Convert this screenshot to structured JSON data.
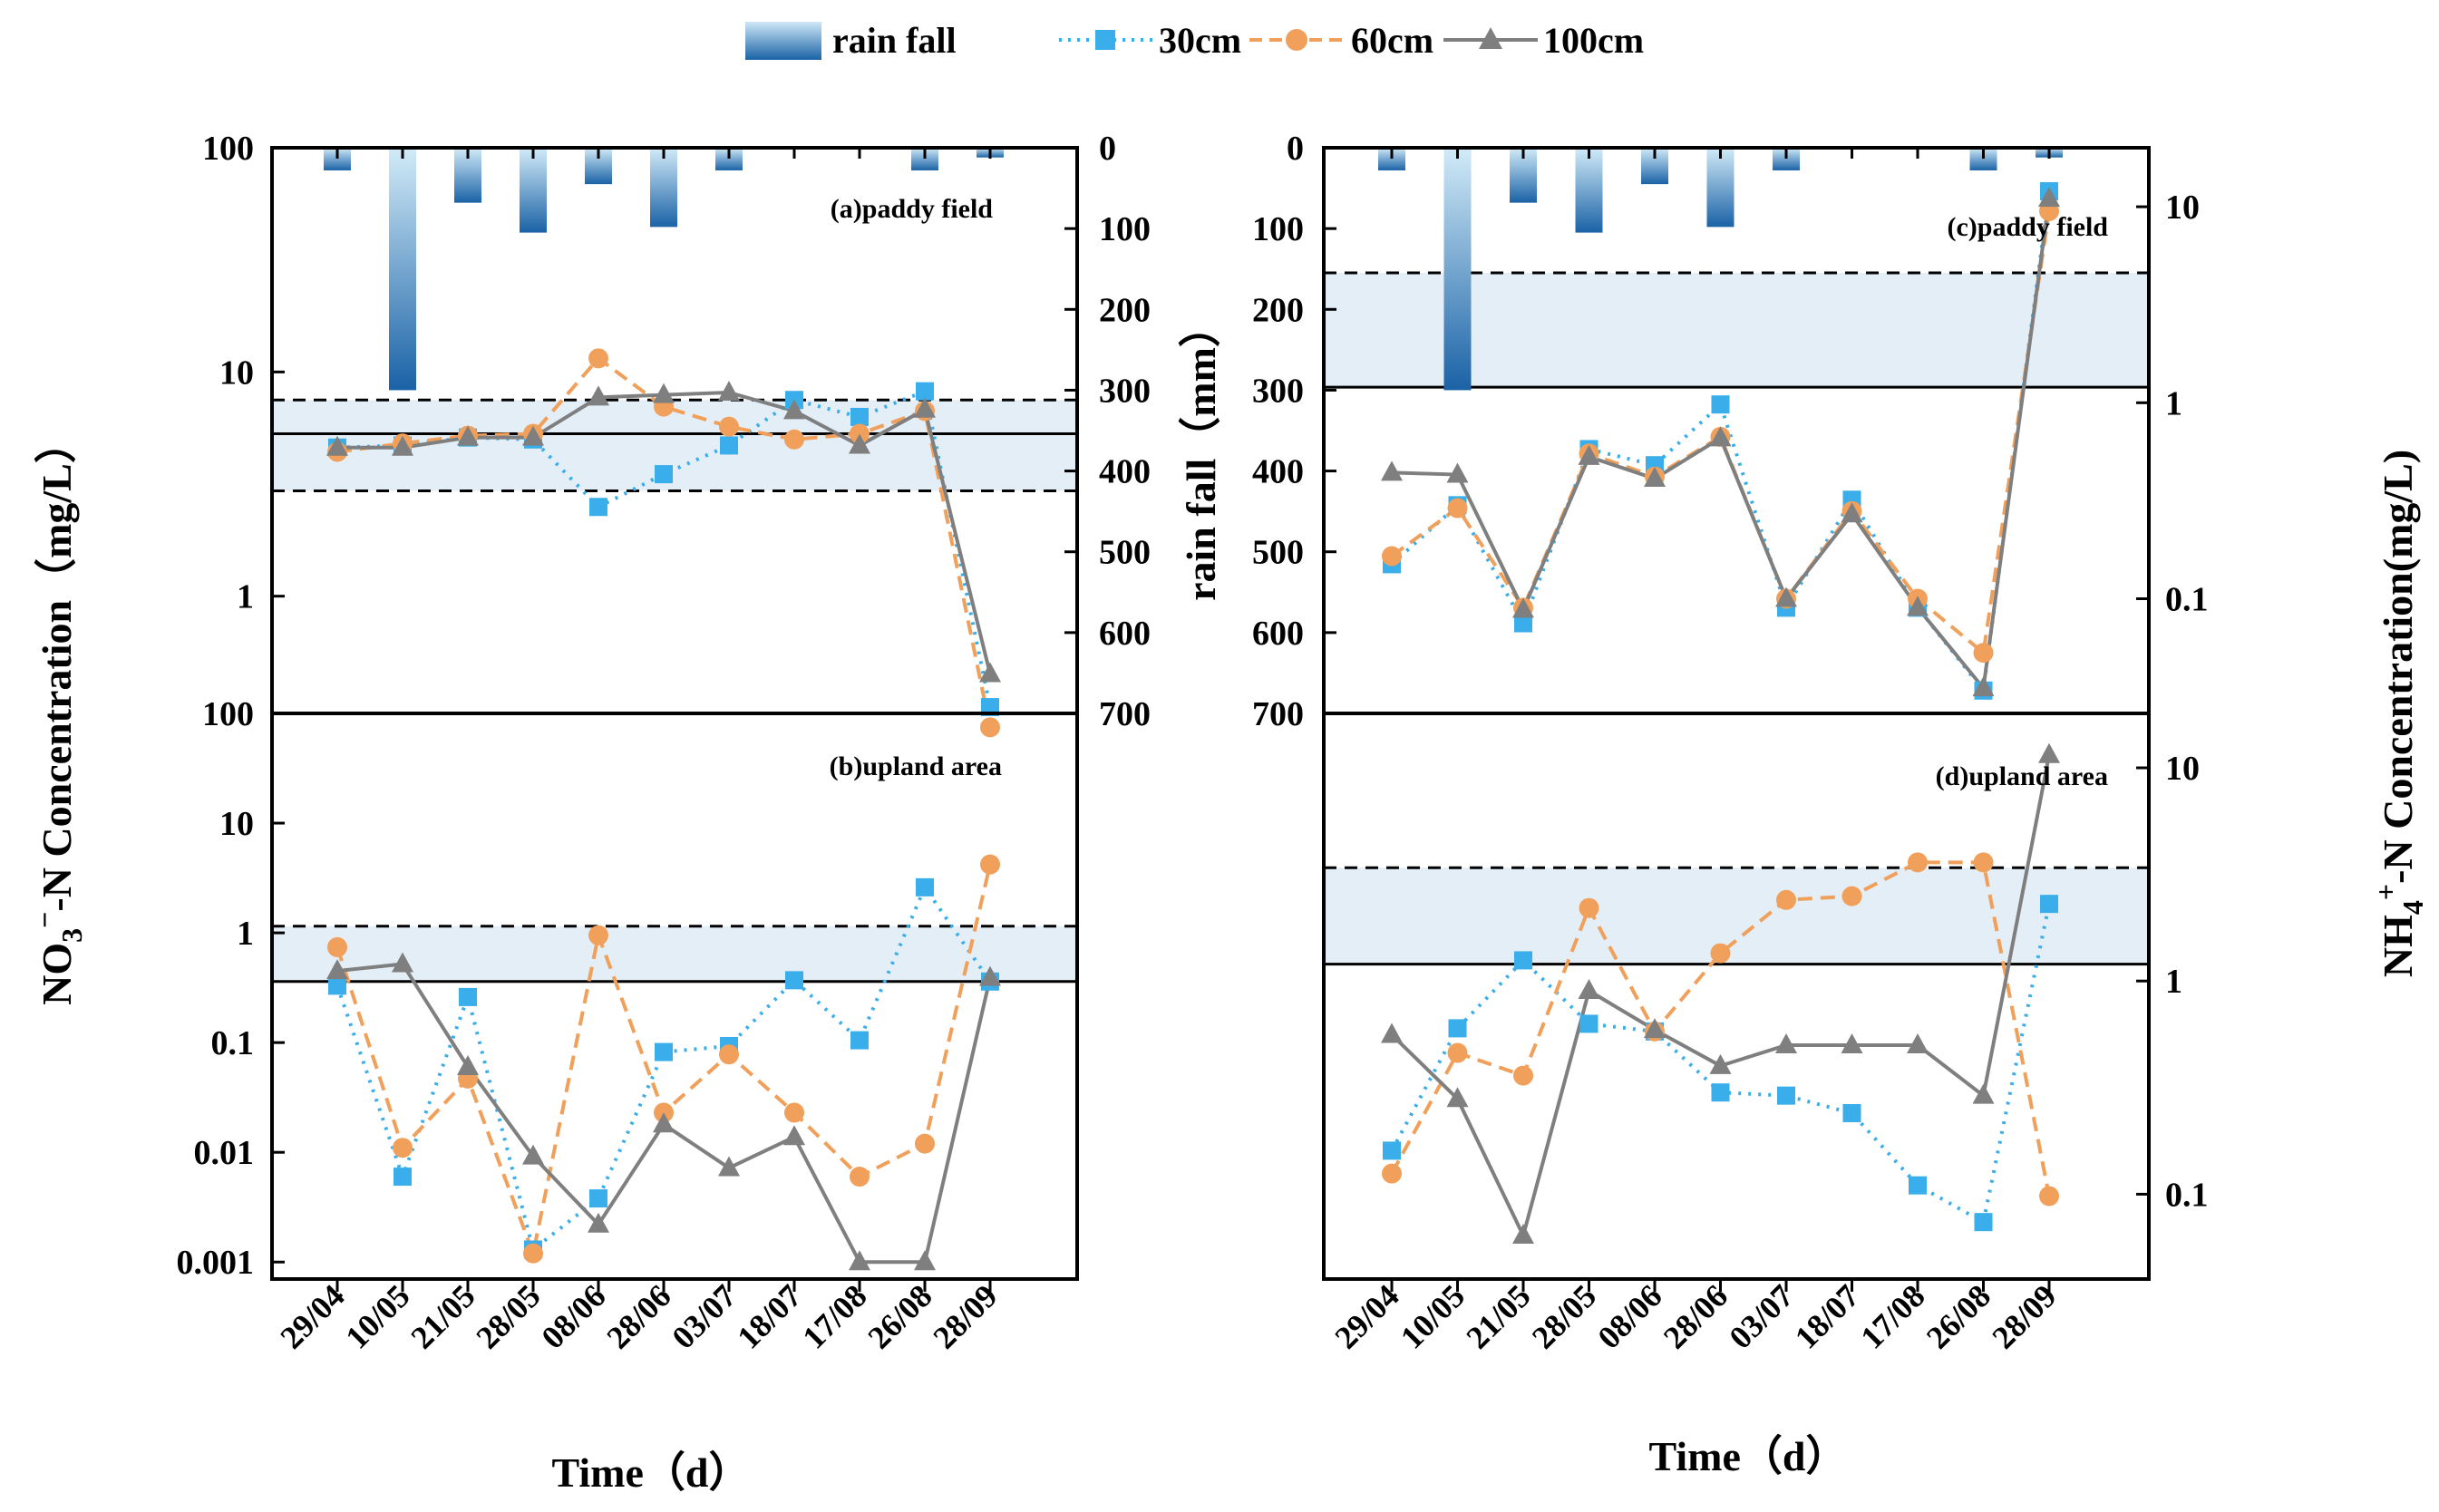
{
  "chart_data": {
    "type": "line",
    "legend": {
      "rain_label": "rain fall",
      "series_labels": [
        "30cm",
        "60cm",
        "100cm"
      ],
      "placement": "top"
    },
    "colors": {
      "s30": "#3aaeea",
      "s60": "#f0a05a",
      "s100": "#7f7f7f",
      "band": "#e4eef7",
      "rain_light": "#d2ebf8",
      "rain_dark": "#1a62a6"
    },
    "categories": [
      "29/04",
      "10/05",
      "21/05",
      "28/05",
      "08/06",
      "28/06",
      "03/07",
      "18/07",
      "17/08",
      "26/08",
      "28/09"
    ],
    "xlabel": "Time（d）",
    "left_ylabel_main": "NO",
    "left_ylabel_sub": "3",
    "left_ylabel_sup": "−",
    "left_ylabel_rest": "-N Concentration（mg/L）",
    "right_ylabel_main": "NH",
    "right_ylabel_sub": "4",
    "right_ylabel_sup": "+",
    "right_ylabel_rest": "-N Concentration(mg/L)",
    "rain_axis_title": "rain fall（mm）",
    "rainfall_mm": {
      "a": [
        28,
        300,
        68,
        105,
        45,
        98,
        28,
        0,
        0,
        28,
        12
      ],
      "c": [
        28,
        300,
        68,
        105,
        45,
        98,
        28,
        0,
        0,
        28,
        12
      ]
    },
    "rain_ticks": [
      "0",
      "100",
      "200",
      "300",
      "400",
      "500",
      "600",
      "700"
    ],
    "panels": [
      {
        "id": "a",
        "label": "(a)paddy field",
        "ylim": [
          0.3,
          100
        ],
        "yticks": [
          "100",
          "10",
          "1"
        ],
        "band": [
          2.95,
          7.5
        ],
        "line": 5.3,
        "series": [
          {
            "name": "30cm",
            "values": [
              4.6,
              4.7,
              5.1,
              5.0,
              2.5,
              3.5,
              4.7,
              7.5,
              6.3,
              8.2,
              0.32
            ]
          },
          {
            "name": "60cm",
            "values": [
              4.4,
              4.8,
              5.2,
              5.3,
              11.5,
              7.0,
              5.7,
              5.0,
              5.3,
              6.7,
              0.26
            ]
          },
          {
            "name": "100cm",
            "values": [
              4.6,
              4.6,
              5.1,
              5.1,
              7.7,
              7.9,
              8.1,
              6.7,
              4.7,
              6.8,
              0.45
            ]
          }
        ]
      },
      {
        "id": "b",
        "label": "(b)upland area",
        "ylim": [
          0.0007,
          100
        ],
        "yticks": [
          "100",
          "10",
          "1",
          "0.1",
          "0.01",
          "0.001"
        ],
        "band": [
          0.36,
          1.15
        ],
        "line": 0.36,
        "series": [
          {
            "name": "30cm",
            "values": [
              0.33,
              0.006,
              0.26,
              0.0013,
              0.0038,
              0.082,
              0.093,
              0.37,
              0.105,
              2.6,
              0.36
            ]
          },
          {
            "name": "60cm",
            "values": [
              0.74,
              0.011,
              0.047,
              0.0012,
              0.95,
              0.023,
              0.078,
              0.023,
              0.006,
              0.012,
              4.2
            ]
          },
          {
            "name": "100cm",
            "values": [
              0.45,
              0.52,
              0.06,
              0.0092,
              0.0022,
              0.018,
              0.0072,
              0.0138,
              0.001,
              0.001,
              0.39
            ]
          }
        ]
      },
      {
        "id": "c",
        "label": "(c)paddy field",
        "ylim": [
          0.026,
          20
        ],
        "yticks": [
          "10",
          "1",
          "0.1"
        ],
        "band": [
          1.2,
          4.6
        ],
        "line": null,
        "series": [
          {
            "name": "30cm",
            "values": [
              0.15,
              0.3,
              0.075,
              0.58,
              0.48,
              0.98,
              0.09,
              0.32,
              0.09,
              0.034,
              12
            ]
          },
          {
            "name": "60cm",
            "values": [
              0.165,
              0.29,
              0.09,
              0.55,
              0.42,
              0.67,
              0.1,
              0.28,
              0.1,
              0.053,
              9.5
            ]
          },
          {
            "name": "100cm",
            "values": [
              0.44,
              0.43,
              0.088,
              0.53,
              0.41,
              0.66,
              0.1,
              0.27,
              0.09,
              0.035,
              11
            ]
          }
        ]
      },
      {
        "id": "d",
        "label": "(d)upland area",
        "ylim": [
          0.04,
          18
        ],
        "yticks": [
          "10",
          "1",
          "0.1"
        ],
        "band": [
          1.2,
          3.4
        ],
        "line": 1.2,
        "series": [
          {
            "name": "30cm",
            "values": [
              0.16,
              0.6,
              1.25,
              0.63,
              0.58,
              0.3,
              0.29,
              0.24,
              0.11,
              0.074,
              2.3
            ]
          },
          {
            "name": "60cm",
            "values": [
              0.125,
              0.46,
              0.36,
              2.2,
              0.58,
              1.35,
              2.4,
              2.5,
              3.6,
              3.6,
              0.098
            ]
          },
          {
            "name": "100cm",
            "values": [
              0.56,
              0.28,
              0.064,
              0.9,
              0.59,
              0.4,
              0.5,
              0.5,
              0.5,
              0.29,
              11.5
            ]
          }
        ]
      }
    ]
  }
}
